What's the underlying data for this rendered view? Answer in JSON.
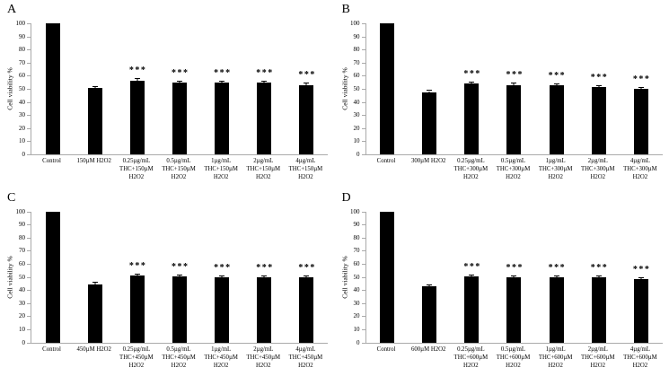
{
  "page": {
    "background": "#ffffff",
    "bar_color": "#000000",
    "axis_color": "#aaaaaa",
    "text_color": "#000000"
  },
  "chart_data": [
    {
      "type": "bar",
      "panel": "A",
      "ylabel": "Cell viability %",
      "ylim": [
        0,
        100
      ],
      "yticks": [
        0,
        10,
        20,
        30,
        40,
        50,
        60,
        70,
        80,
        90,
        100
      ],
      "grid": false,
      "legend": null,
      "categories": [
        "Control",
        "150µM H2O2",
        "0.25µg/mL\nTHC+150µM\nH2O2",
        "0.5µg/mL\nTHC+150µM\nH2O2",
        "1µg/mL\nTHC+150µM\nH2O2",
        "2µg/mL\nTHC+150µM\nH2O2",
        "4µg/mL\nTHC+150µM\nH2O2"
      ],
      "values": [
        100,
        50.5,
        56.5,
        54.5,
        55,
        55,
        53
      ],
      "errors": [
        0,
        0.8,
        0.8,
        0.8,
        0.8,
        0.8,
        0.8
      ],
      "significance": [
        "",
        "",
        "***",
        "***",
        "***",
        "***",
        "***"
      ]
    },
    {
      "type": "bar",
      "panel": "B",
      "ylabel": "Cell viability %",
      "ylim": [
        0,
        100
      ],
      "yticks": [
        0,
        10,
        20,
        30,
        40,
        50,
        60,
        70,
        80,
        90,
        100
      ],
      "grid": false,
      "legend": null,
      "categories": [
        "Control",
        "300µM H2O2",
        "0.25µg/mL\nTHC+300µM\nH2O2",
        "0.5µg/mL\nTHC+300µM\nH2O2",
        "1µg/mL\nTHC+300µM\nH2O2",
        "2µg/mL\nTHC+300µM\nH2O2",
        "4µg/mL\nTHC+300µM\nH2O2"
      ],
      "values": [
        100,
        47.5,
        54,
        53,
        52.5,
        51.5,
        50
      ],
      "errors": [
        0,
        0.8,
        0.8,
        0.8,
        0.8,
        0.8,
        0.8
      ],
      "significance": [
        "",
        "",
        "***",
        "***",
        "***",
        "***",
        "***"
      ]
    },
    {
      "type": "bar",
      "panel": "C",
      "ylabel": "Cell viability %",
      "ylim": [
        0,
        100
      ],
      "yticks": [
        0,
        10,
        20,
        30,
        40,
        50,
        60,
        70,
        80,
        90,
        100
      ],
      "grid": false,
      "legend": null,
      "categories": [
        "Control",
        "450µM H2O2",
        "0.25µg/mL\nTHC+450µM\nH2O2",
        "0.5µg/mL\nTHC+450µM\nH2O2",
        "1µg/mL\nTHC+450µM\nH2O2",
        "2µg/mL\nTHC+450µM\nH2O2",
        "4µg/mL\nTHC+450µM\nH2O2"
      ],
      "values": [
        100,
        44.5,
        51,
        50.5,
        49.5,
        49.5,
        49.5
      ],
      "errors": [
        0,
        0.8,
        0.8,
        0.8,
        0.8,
        0.8,
        0.8
      ],
      "significance": [
        "",
        "",
        "***",
        "***",
        "***",
        "***",
        "***"
      ]
    },
    {
      "type": "bar",
      "panel": "D",
      "ylabel": "Cell viability %",
      "ylim": [
        0,
        100
      ],
      "yticks": [
        0,
        10,
        20,
        30,
        40,
        50,
        60,
        70,
        80,
        90,
        100
      ],
      "grid": false,
      "legend": null,
      "categories": [
        "Control",
        "600µM H2O2",
        "0.25µg/mL\nTHC+600µM\nH2O2",
        "0.5µg/mL\nTHC+600µM\nH2O2",
        "1µg/mL\nTHC+600µM\nH2O2",
        "2µg/mL\nTHC+600µM\nH2O2",
        "4µg/mL\nTHC+600µM\nH2O2"
      ],
      "values": [
        100,
        42.5,
        50.5,
        49.5,
        49.5,
        49.5,
        48
      ],
      "errors": [
        0,
        0.8,
        0.8,
        0.8,
        0.8,
        0.8,
        0.8
      ],
      "significance": [
        "",
        "",
        "***",
        "***",
        "***",
        "***",
        "***"
      ]
    }
  ]
}
